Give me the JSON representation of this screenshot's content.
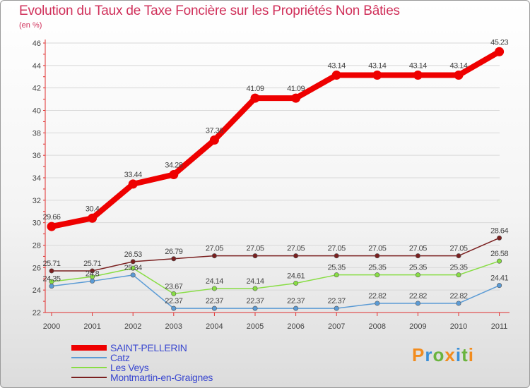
{
  "chart_data": {
    "type": "line",
    "title": "Evolution du Taux de Taxe Foncière sur les Propriétés Non Bâties",
    "subtitle": "(en %)",
    "categories": [
      "2000",
      "2001",
      "2002",
      "2003",
      "2004",
      "2005",
      "2006",
      "2007",
      "2008",
      "2009",
      "2010",
      "2011"
    ],
    "ylim": [
      22,
      46
    ],
    "yticks": [
      22,
      24,
      26,
      28,
      30,
      32,
      34,
      36,
      38,
      40,
      42,
      44,
      46
    ],
    "series": [
      {
        "name": "SAINT-PELLERIN",
        "color": "#ee0000",
        "values": [
          29.66,
          30.4,
          33.44,
          34.28,
          37.36,
          41.09,
          41.09,
          43.14,
          43.14,
          43.14,
          43.14,
          45.23
        ],
        "labels": [
          "29.66",
          "30.4",
          "33.44",
          "34.28",
          "37.36",
          "41.09",
          "41.09",
          "43.14",
          "43.14",
          "43.14",
          "43.14",
          "45.23"
        ]
      },
      {
        "name": "Catz",
        "color": "#5b9bd5",
        "values": [
          24.35,
          24.8,
          25.34,
          22.37,
          22.37,
          22.37,
          22.37,
          22.37,
          22.82,
          22.82,
          22.82,
          24.41
        ],
        "labels": [
          "24.35",
          "24.8",
          "25.34",
          "22.37",
          "22.37",
          "22.37",
          "22.37",
          "22.37",
          "22.82",
          "22.82",
          "22.82",
          "24.41"
        ]
      },
      {
        "name": "Les Veys",
        "color": "#88dd44",
        "values": [
          24.75,
          25.19,
          25.95,
          23.67,
          24.14,
          24.14,
          24.61,
          25.35,
          25.35,
          25.35,
          25.35,
          26.58
        ],
        "labels": [
          "",
          "",
          "",
          "23.67",
          "24.14",
          "24.14",
          "24.61",
          "25.35",
          "25.35",
          "25.35",
          "25.35",
          "26.58"
        ]
      },
      {
        "name": "Montmartin-en-Graignes",
        "color": "#7a1f1f",
        "values": [
          25.71,
          25.71,
          26.53,
          26.79,
          27.05,
          27.05,
          27.05,
          27.05,
          27.05,
          27.05,
          27.05,
          28.64
        ],
        "labels": [
          "25.71",
          "25.71",
          "26.53",
          "26.79",
          "27.05",
          "27.05",
          "27.05",
          "27.05",
          "27.05",
          "27.05",
          "27.05",
          "28.64"
        ]
      }
    ]
  },
  "legend": {
    "items": [
      "SAINT-PELLERIN",
      "Catz",
      "Les Veys",
      "Montmartin-en-Graignes"
    ]
  },
  "logo": {
    "letters": [
      "P",
      "r",
      "o",
      "x",
      "i",
      "t",
      "i"
    ],
    "colors": [
      "#f28c1e",
      "#3a8fd8",
      "#6ab43e",
      "#f28c1e",
      "#3a8fd8",
      "#6ab43e",
      "#f28c1e"
    ]
  }
}
